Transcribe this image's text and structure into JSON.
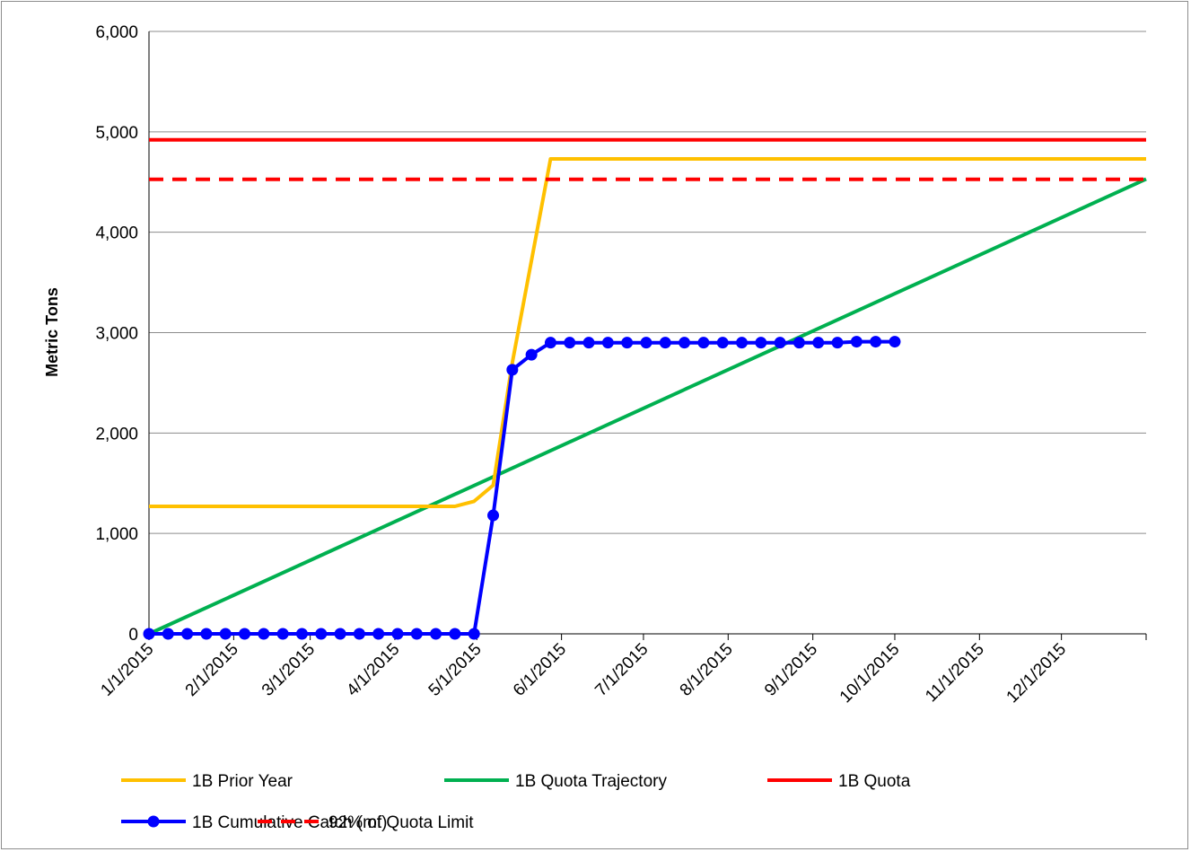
{
  "chart_data": {
    "type": "line",
    "title": "",
    "xlabel": "",
    "ylabel": "Metric Tons",
    "ylim": [
      0,
      6000
    ],
    "y_ticks": [
      0,
      1000,
      2000,
      3000,
      4000,
      5000,
      6000
    ],
    "y_tick_labels": [
      "0",
      "1,000",
      "2,000",
      "3,000",
      "4,000",
      "5,000",
      "6,000"
    ],
    "xlim": [
      "2015-01-01",
      "2016-01-01"
    ],
    "x_ticks": [
      "2015-01-01",
      "2015-02-01",
      "2015-03-01",
      "2015-04-01",
      "2015-05-01",
      "2015-06-01",
      "2015-07-01",
      "2015-08-01",
      "2015-09-01",
      "2015-10-01",
      "2015-11-01",
      "2015-12-01"
    ],
    "x_tick_labels": [
      "1/1/2015",
      "2/1/2015",
      "3/1/2015",
      "4/1/2015",
      "5/1/2015",
      "6/1/2015",
      "7/1/2015",
      "8/1/2015",
      "9/1/2015",
      "10/1/2015",
      "11/1/2015",
      "12/1/2015"
    ],
    "grid": "horizontal",
    "legend_position": "bottom",
    "colors": {
      "prior": "#FFC000",
      "trajectory": "#00B050",
      "quota": "#FF0000",
      "catch": "#0000FF",
      "limit": "#FF0000",
      "grid": "#8c8c8c"
    },
    "series": [
      {
        "name": "1B Prior Year",
        "style": "solid",
        "color": "#FFC000",
        "x": [
          "2015-01-01",
          "2015-04-23",
          "2015-04-30",
          "2015-05-07",
          "2015-05-14",
          "2015-05-28",
          "2016-01-01"
        ],
        "y": [
          1270,
          1270,
          1320,
          1480,
          2700,
          4730,
          4730
        ]
      },
      {
        "name": "1B Quota Trajectory",
        "style": "solid",
        "color": "#00B050",
        "x": [
          "2015-01-01",
          "2016-01-01"
        ],
        "y": [
          0,
          4530
        ]
      },
      {
        "name": "1B Quota",
        "style": "solid",
        "color": "#FF0000",
        "x": [
          "2015-01-01",
          "2016-01-01"
        ],
        "y": [
          4920,
          4920
        ]
      },
      {
        "name": "1B Cumulative Catch (mt)",
        "style": "solid-markers",
        "color": "#0000FF",
        "x": [
          "2015-01-01",
          "2015-01-08",
          "2015-01-15",
          "2015-01-22",
          "2015-01-29",
          "2015-02-05",
          "2015-02-12",
          "2015-02-19",
          "2015-02-26",
          "2015-03-05",
          "2015-03-12",
          "2015-03-19",
          "2015-03-26",
          "2015-04-02",
          "2015-04-09",
          "2015-04-16",
          "2015-04-23",
          "2015-04-30",
          "2015-05-07",
          "2015-05-14",
          "2015-05-21",
          "2015-05-28",
          "2015-06-04",
          "2015-06-11",
          "2015-06-18",
          "2015-06-25",
          "2015-07-02",
          "2015-07-09",
          "2015-07-16",
          "2015-07-23",
          "2015-07-30",
          "2015-08-06",
          "2015-08-13",
          "2015-08-20",
          "2015-08-27",
          "2015-09-03",
          "2015-09-10",
          "2015-09-17",
          "2015-09-24",
          "2015-10-01"
        ],
        "y": [
          0,
          0,
          0,
          0,
          0,
          0,
          0,
          0,
          0,
          0,
          0,
          0,
          0,
          0,
          0,
          0,
          0,
          0,
          1180,
          2630,
          2780,
          2900,
          2900,
          2900,
          2900,
          2900,
          2900,
          2900,
          2900,
          2900,
          2900,
          2900,
          2900,
          2900,
          2900,
          2900,
          2900,
          2910,
          2910,
          2910
        ]
      },
      {
        "name": "92% of Quota Limit",
        "style": "dashed",
        "color": "#FF0000",
        "x": [
          "2015-01-01",
          "2016-01-01"
        ],
        "y": [
          4527,
          4527
        ]
      }
    ]
  }
}
